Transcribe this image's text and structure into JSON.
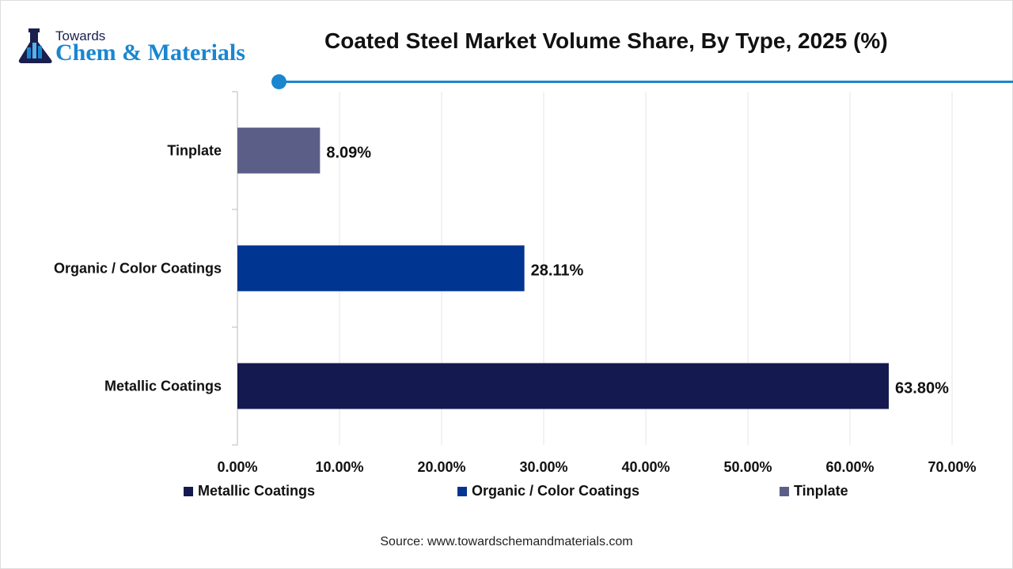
{
  "logo": {
    "line1": "Towards",
    "line2": "Chem & Materials"
  },
  "chart_data": {
    "type": "bar",
    "orientation": "horizontal",
    "title": "Coated Steel Market Volume Share, By Type, 2025 (%)",
    "categories": [
      "Tinplate",
      "Organic / Color Coatings",
      "Metallic Coatings"
    ],
    "values": [
      8.09,
      28.11,
      63.8
    ],
    "data_labels": [
      "8.09%",
      "28.11%",
      "63.80%"
    ],
    "colors": [
      "#5b5f88",
      "#003591",
      "#141a4f"
    ],
    "xlim": [
      0,
      70
    ],
    "xticks": [
      0,
      10,
      20,
      30,
      40,
      50,
      60,
      70
    ],
    "xtick_labels": [
      "0.00%",
      "10.00%",
      "20.00%",
      "30.00%",
      "40.00%",
      "50.00%",
      "60.00%",
      "70.00%"
    ],
    "grid": "vertical",
    "legend_position": "bottom",
    "legend": [
      {
        "name": "Metallic Coatings",
        "color": "#141a4f"
      },
      {
        "name": "Organic / Color Coatings",
        "color": "#003591"
      },
      {
        "name": "Tinplate",
        "color": "#5b5f88"
      }
    ]
  },
  "source": "Source: www.towardschemandmaterials.com",
  "accent_color": "#1a86d0"
}
